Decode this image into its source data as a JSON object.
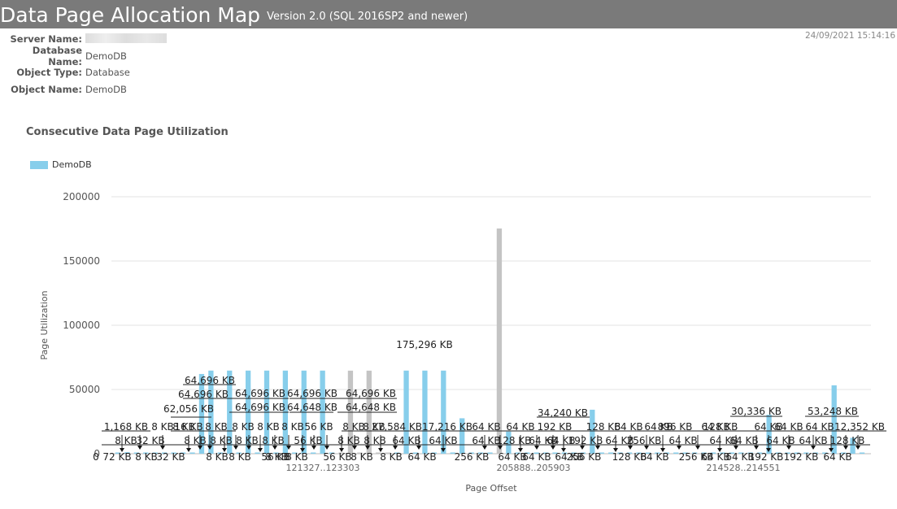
{
  "header": {
    "title": "Data Page Allocation Map",
    "version": "Version 2.0 (SQL 2016SP2 and newer)"
  },
  "info": {
    "server_label": "Server Name:",
    "server_value": "",
    "database_label": "Database Name:",
    "database_value": "DemoDB",
    "object_type_label": "Object Type:",
    "object_type_value": "Database",
    "object_name_label": "Object Name:",
    "object_name_value": "DemoDB"
  },
  "timestamp": "24/09/2021 15:14:16",
  "colors": {
    "primary": "#87ceeb",
    "secondary": "#c4c4c4"
  },
  "chart_data": {
    "type": "bar",
    "title": "Consecutive Data Page Utilization",
    "xlabel": "Page Offset",
    "ylabel": "Page Utilization",
    "ylim": [
      0,
      200000
    ],
    "yticks": [
      0,
      50000,
      100000,
      150000,
      200000
    ],
    "xticks": [
      "121327..123303",
      "205888..205903",
      "214528..214551"
    ],
    "legend": [
      "DemoDB"
    ],
    "series": [
      {
        "name": "DemoDB",
        "values": [
          {
            "v": 72,
            "c": "primary"
          },
          {
            "v": 1168,
            "c": "primary"
          },
          {
            "v": 8,
            "c": "primary"
          },
          {
            "v": 8,
            "c": "primary"
          },
          {
            "v": 32,
            "c": "primary"
          },
          {
            "v": 8,
            "c": "primary"
          },
          {
            "v": 32,
            "c": "primary"
          },
          {
            "v": 16,
            "c": "primary"
          },
          {
            "v": 8,
            "c": "primary"
          },
          {
            "v": 62056,
            "c": "primary"
          },
          {
            "v": 64696,
            "c": "primary"
          },
          {
            "v": 8,
            "c": "primary"
          },
          {
            "v": 64696,
            "c": "primary"
          },
          {
            "v": 8,
            "c": "primary"
          },
          {
            "v": 64696,
            "c": "primary"
          },
          {
            "v": 8,
            "c": "primary"
          },
          {
            "v": 64696,
            "c": "primary"
          },
          {
            "v": 8,
            "c": "primary"
          },
          {
            "v": 64696,
            "c": "primary"
          },
          {
            "v": 8,
            "c": "primary"
          },
          {
            "v": 64696,
            "c": "primary"
          },
          {
            "v": 8,
            "c": "primary"
          },
          {
            "v": 64696,
            "c": "primary"
          },
          {
            "v": 8,
            "c": "primary"
          },
          {
            "v": 56,
            "c": "secondary"
          },
          {
            "v": 64648,
            "c": "secondary"
          },
          {
            "v": 56,
            "c": "secondary"
          },
          {
            "v": 64648,
            "c": "secondary"
          },
          {
            "v": 56,
            "c": "secondary"
          },
          {
            "v": 56,
            "c": "secondary"
          },
          {
            "v": 8,
            "c": "primary"
          },
          {
            "v": 64696,
            "c": "primary"
          },
          {
            "v": 8,
            "c": "primary"
          },
          {
            "v": 64696,
            "c": "primary"
          },
          {
            "v": 8,
            "c": "primary"
          },
          {
            "v": 64696,
            "c": "primary"
          },
          {
            "v": 8,
            "c": "primary"
          },
          {
            "v": 27584,
            "c": "primary"
          },
          {
            "v": 8,
            "c": "primary"
          },
          {
            "v": 64,
            "c": "primary"
          },
          {
            "v": 64,
            "c": "primary"
          },
          {
            "v": 175296,
            "c": "secondary"
          },
          {
            "v": 17216,
            "c": "primary"
          },
          {
            "v": 64,
            "c": "primary"
          },
          {
            "v": 256,
            "c": "primary"
          },
          {
            "v": 64,
            "c": "primary"
          },
          {
            "v": 64,
            "c": "primary"
          },
          {
            "v": 64,
            "c": "primary"
          },
          {
            "v": 128,
            "c": "primary"
          },
          {
            "v": 64,
            "c": "primary"
          },
          {
            "v": 64,
            "c": "primary"
          },
          {
            "v": 34240,
            "c": "primary"
          },
          {
            "v": 64,
            "c": "primary"
          },
          {
            "v": 192,
            "c": "primary"
          },
          {
            "v": 192,
            "c": "primary"
          },
          {
            "v": 128,
            "c": "primary"
          },
          {
            "v": 256,
            "c": "primary"
          },
          {
            "v": 64,
            "c": "primary"
          },
          {
            "v": 64,
            "c": "primary"
          },
          {
            "v": 128,
            "c": "primary"
          },
          {
            "v": 256,
            "c": "primary"
          },
          {
            "v": 64,
            "c": "primary"
          },
          {
            "v": 64,
            "c": "primary"
          },
          {
            "v": 896,
            "c": "primary"
          },
          {
            "v": 64,
            "c": "primary"
          },
          {
            "v": 256,
            "c": "primary"
          },
          {
            "v": 64,
            "c": "primary"
          },
          {
            "v": 128,
            "c": "primary"
          },
          {
            "v": 64,
            "c": "primary"
          },
          {
            "v": 64,
            "c": "primary"
          },
          {
            "v": 30336,
            "c": "primary"
          },
          {
            "v": 64,
            "c": "primary"
          },
          {
            "v": 192,
            "c": "primary"
          },
          {
            "v": 64,
            "c": "primary"
          },
          {
            "v": 64,
            "c": "primary"
          },
          {
            "v": 192,
            "c": "primary"
          },
          {
            "v": 64,
            "c": "primary"
          },
          {
            "v": 53248,
            "c": "primary"
          },
          {
            "v": 64,
            "c": "primary"
          },
          {
            "v": 12352,
            "c": "primary"
          },
          {
            "v": 128,
            "c": "primary"
          }
        ]
      }
    ],
    "data_labels": [
      "0",
      "72 KB",
      "1,168 KB",
      "8 KB",
      "8 KB",
      "32 KB",
      "8 KB",
      "32 KB",
      "16 KB",
      "62,056 KB",
      "64,696 KB",
      "64,696 KB",
      "64,696 KB",
      "64,696 KB",
      "64,696 KB",
      "64,696 KB",
      "64,648 KB",
      "64,648 KB",
      "56 KB",
      "27,584 KB",
      "175,296 KB",
      "17,216 KB",
      "34,240 KB",
      "192 KB",
      "128 KB",
      "896 KB",
      "256 KB",
      "30,336 KB",
      "53,248 KB",
      "12,352 KB"
    ]
  }
}
